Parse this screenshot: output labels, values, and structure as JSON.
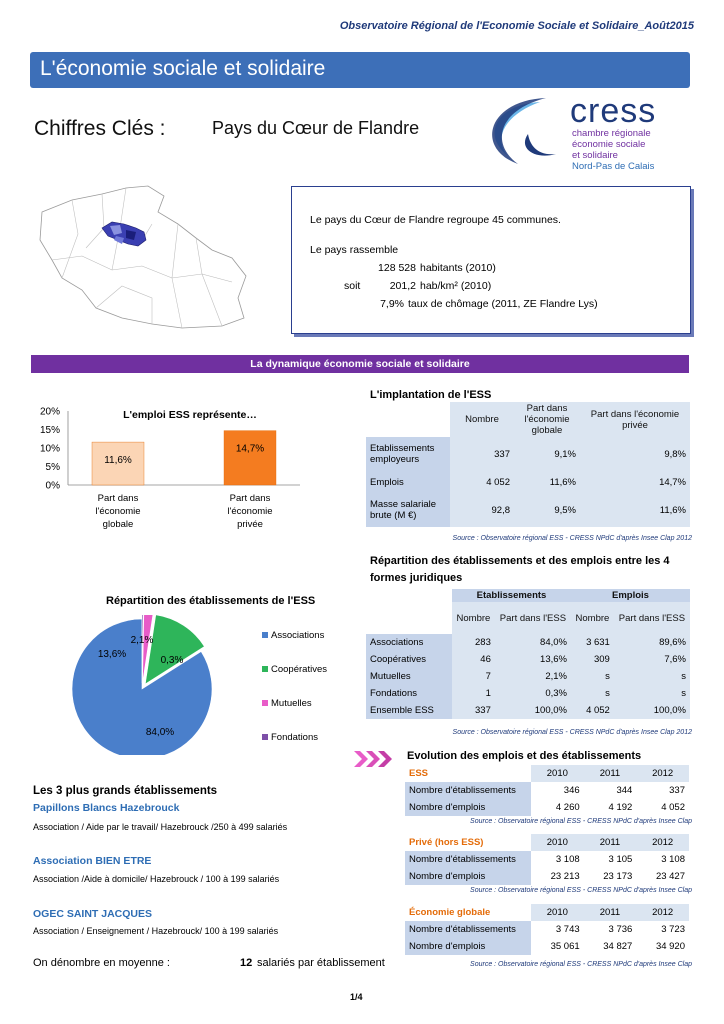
{
  "header": {
    "note": "Observatoire Régional de l'Economie Sociale et Solidaire_Août2015"
  },
  "title": "L'économie sociale et solidaire",
  "chiffres": "Chiffres Clés :",
  "pays": "Pays du Cœur de Flandre",
  "logo": {
    "main": "cress",
    "line1": "chambre régionale",
    "line2": "économie sociale",
    "line3": "et solidaire",
    "line4": "Nord-Pas de Calais"
  },
  "info": {
    "line1": "Le pays  du Cœur de Flandre regroupe 45 communes.",
    "line2": "Le pays rassemble",
    "hab_value": "128 528",
    "hab_label": "habitants (2010)",
    "soit": "soit",
    "dens_value": "201,2",
    "dens_label": "hab/km² (2010)",
    "chom_value": "7,9%",
    "chom_label": "taux de chômage (2011, ZE Flandre Lys)"
  },
  "section_title": "La dynamique économie sociale et solidaire",
  "chart_data": [
    {
      "type": "bar",
      "title": "L'emploi ESS représente…",
      "categories": [
        "Part dans l'économie globale",
        "Part dans l'économie privée"
      ],
      "values": [
        11.6,
        14.7
      ],
      "value_labels": [
        "11,6%",
        "14,7%"
      ],
      "ylim": [
        0,
        20
      ],
      "yticks": [
        "0%",
        "5%",
        "10%",
        "15%",
        "20%"
      ],
      "colors": [
        "#fbd5b5",
        "#f47c20"
      ]
    },
    {
      "type": "pie",
      "title": "Répartition des établissements de l'ESS",
      "categories": [
        "Associations",
        "Coopératives",
        "Mutuelles",
        "Fondations"
      ],
      "values": [
        84.0,
        13.6,
        2.1,
        0.3
      ],
      "value_labels": [
        "84,0%",
        "13,6%",
        "2,1%",
        "0,3%"
      ],
      "colors": [
        "#4a7fcb",
        "#2eb55a",
        "#e85cc8",
        "#7d4fa8"
      ]
    }
  ],
  "bar_xlabels": [
    [
      "Part dans",
      "l'économie",
      "globale"
    ],
    [
      "Part dans",
      "l'économie",
      "privée"
    ]
  ],
  "implantation": {
    "title": "L'implantation de l'ESS",
    "headers": [
      "Nombre",
      "Part dans l'économie globale",
      "Part dans l'économie privée"
    ],
    "rows": [
      {
        "label": "Etablissements employeurs",
        "nombre": "337",
        "globale": "9,1%",
        "privee": "9,8%"
      },
      {
        "label": "Emplois",
        "nombre": "4 052",
        "globale": "11,6%",
        "privee": "14,7%"
      },
      {
        "label": "Masse salariale brute (M €)",
        "nombre": "92,8",
        "globale": "9,5%",
        "privee": "11,6%"
      }
    ],
    "source": "Source : Observatoire régional ESS - CRESS NPdC d'après Insee Clap 2012"
  },
  "repartition": {
    "title": "Répartition des établissements et des emplois entre les 4 formes juridiques",
    "group1": "Etablissements",
    "group2": "Emplois",
    "headers": [
      "Nombre",
      "Part dans l'ESS",
      "Nombre",
      "Part dans l'ESS"
    ],
    "rows": [
      {
        "label": "Associations",
        "n1": "283",
        "p1": "84,0%",
        "n2": "3 631",
        "p2": "89,6%"
      },
      {
        "label": "Coopératives",
        "n1": "46",
        "p1": "13,6%",
        "n2": "309",
        "p2": "7,6%"
      },
      {
        "label": "Mutuelles",
        "n1": "7",
        "p1": "2,1%",
        "n2": "s",
        "p2": "s"
      },
      {
        "label": "Fondations",
        "n1": "1",
        "p1": "0,3%",
        "n2": "s",
        "p2": "s"
      },
      {
        "label": "Ensemble ESS",
        "n1": "337",
        "p1": "100,0%",
        "n2": "4 052",
        "p2": "100,0%"
      }
    ],
    "source": "Source : Observatoire régional ESS - CRESS NPdC d'après Insee Clap 2012"
  },
  "legend": [
    "Associations",
    "Coopératives",
    "Mutuelles",
    "Fondations"
  ],
  "evolution": {
    "title": "Evolution des emplois et des établissements",
    "years": [
      "2010",
      "2011",
      "2012"
    ],
    "blocks": [
      {
        "name": "ESS",
        "etab_label": "Nombre d'établissements",
        "etab": [
          "346",
          "344",
          "337"
        ],
        "emp_label": "Nombre d'emplois",
        "emp": [
          "4 260",
          "4 192",
          "4 052"
        ],
        "source": "Source : Observatoire régional ESS - CRESS NPdC d'après Insee Clap"
      },
      {
        "name": "Privé (hors ESS)",
        "etab_label": "Nombre d'établissements",
        "etab": [
          "3 108",
          "3 105",
          "3 108"
        ],
        "emp_label": "Nombre d'emplois",
        "emp": [
          "23 213",
          "23 173",
          "23 427"
        ],
        "source": "Source : Observatoire régional ESS - CRESS NPdC d'après Insee Clap"
      },
      {
        "name": "Économie globale",
        "etab_label": "Nombre d'établissements",
        "etab": [
          "3 743",
          "3 736",
          "3 723"
        ],
        "emp_label": "Nombre d'emplois",
        "emp": [
          "35 061",
          "34 827",
          "34 920"
        ],
        "source": "Source : Observatoire régional ESS - CRESS NPdC d'après Insee Clap"
      }
    ]
  },
  "top3": {
    "title": "Les 3  plus grands établissements",
    "items": [
      {
        "name": "Papillons Blancs Hazebrouck",
        "desc": "Association / Aide par le travail/ Hazebrouck /250 à 499 salariés"
      },
      {
        "name": "Association BIEN ETRE",
        "desc": "Association /Aide à domicile/ Hazebrouck /  100 à 199 salariés"
      },
      {
        "name": "OGEC SAINT JACQUES",
        "desc": "Association / Enseignement / Hazebrouck/ 100 à 199 salariés"
      }
    ]
  },
  "moyenne": {
    "label": "On dénombre en moyenne :",
    "value": "12",
    "unit": "salariés par établissement"
  },
  "page": "1/4"
}
